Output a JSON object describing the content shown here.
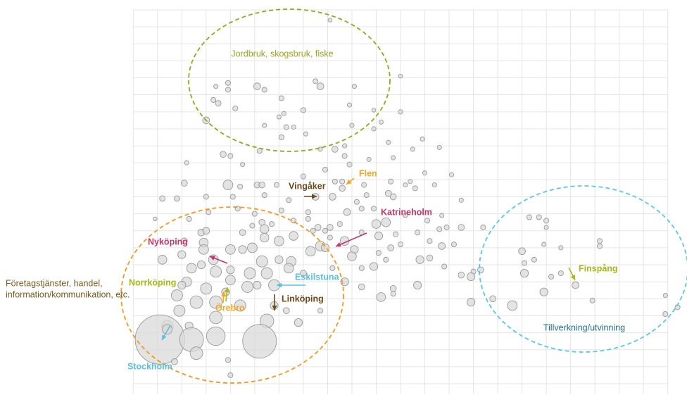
{
  "chart_data": {
    "type": "scatter",
    "xlim": [
      -0.5,
      22.5
    ],
    "ylim": [
      -0.6,
      22
    ],
    "xticks": [
      0,
      1,
      2,
      3,
      4,
      5,
      6,
      7,
      8,
      9,
      10,
      11,
      12,
      13,
      14,
      15,
      16,
      17,
      18,
      19,
      20,
      21,
      22
    ],
    "yticks": [
      0,
      1,
      2,
      3,
      4,
      5,
      6,
      7,
      8,
      9,
      10,
      11,
      12,
      13,
      14,
      15,
      16,
      17,
      18,
      19,
      20,
      21,
      22
    ],
    "grid": true,
    "series": [
      {
        "color": "#d9d9d9",
        "x": [
          8.1,
          11.0,
          7.5,
          7.7,
          9.1,
          5.1,
          5.4,
          3.4,
          3.9,
          3.9,
          3.3,
          3.5,
          6.1,
          4.2,
          6.2,
          6.0,
          7.0,
          8.9,
          9.9,
          11.0,
          5.4,
          6.3,
          6.6,
          7.1,
          6.1,
          9.9,
          3.0,
          9.0,
          10.2,
          10.5,
          8.3,
          8.7,
          7.7,
          8.7,
          11.9,
          12.6,
          11.5,
          3.7,
          5.2,
          4.0,
          9.7,
          10.7,
          2.2,
          4.5,
          8.9,
          7.9,
          12.0,
          13.1,
          3.9,
          2.1,
          4.4,
          5.1,
          5.3,
          5.9,
          7.0,
          8.3,
          8.6,
          8.6,
          8.2,
          9.5,
          10.6,
          11.2,
          11.4,
          11.6,
          12.4,
          1.2,
          1.8,
          3.0,
          4.1,
          5.4,
          6.4,
          7.5,
          9.2,
          9.6,
          10.5,
          10.7,
          13.5,
          0.9,
          2.3,
          3.1,
          4.3,
          5.0,
          6.1,
          7.2,
          7.2,
          8.8,
          9.4,
          9.9,
          10.4,
          11.2,
          12.1,
          12.7,
          4.9,
          5.3,
          5.7,
          6.6,
          7.6,
          8.1,
          8.5,
          10.0,
          11.7,
          12.6,
          12.9,
          13.5,
          14.4,
          16.3,
          16.7,
          17.0,
          17.0,
          2.8,
          3.0,
          2.1,
          2.9,
          4.5,
          5.4,
          5.4,
          6.6,
          7.4,
          7.9,
          8.1,
          8.7,
          9.4,
          10.1,
          10.8,
          12.2,
          12.7,
          13.2,
          11.0,
          10.6,
          10.1,
          9.1,
          19.2,
          19.2,
          17.6,
          16.0,
          16.9,
          1.2,
          2.0,
          3.3,
          4.0,
          4.5,
          4.9,
          6.0,
          5.3,
          6.0,
          6.5,
          7.3,
          7.7,
          7.9,
          2.4,
          2.8,
          2.9,
          3.4,
          4.0,
          4.8,
          5.5,
          6.4,
          8.2,
          9.0,
          9.4,
          9.9,
          10.4,
          11.8,
          12.2,
          12.8,
          13.5,
          14.0,
          2.2,
          3.0,
          4.0,
          4.7,
          5.1,
          5.8,
          7.0,
          8.7,
          9.4,
          10.7,
          11.7,
          13.9,
          14.3,
          16.1,
          17.2,
          17.6,
          18.2,
          16.1,
          16.5,
          1.8,
          2.0,
          2.6,
          3.4,
          3.8,
          1.9,
          3.4,
          4.4,
          5.5,
          5.8,
          6.3,
          7.7,
          10.2,
          10.7,
          13.9,
          14.8,
          15.6,
          16.9,
          18.9,
          21.9,
          22.4,
          21.9,
          1.4,
          2.3,
          6.8,
          1.1,
          1.4,
          2.4,
          3.4,
          5.2,
          2.6,
          1.7,
          3.9,
          4.0
        ],
        "values": [
          21.4,
          18.1,
          17.8,
          17.5,
          17.5,
          17.5,
          17.3,
          17.5,
          17.7,
          17.3,
          16.7,
          16.5,
          16.8,
          16.2,
          15.9,
          15.7,
          16.1,
          16.4,
          16.1,
          16.0,
          15.2,
          15.1,
          15.1,
          14.7,
          14.5,
          15.0,
          15.5,
          15.2,
          15.4,
          14.2,
          13.8,
          14.0,
          13.8,
          13.4,
          14.4,
          13.9,
          13.8,
          13.5,
          13.7,
          13.4,
          13.2,
          13.3,
          13.0,
          12.9,
          12.9,
          12.6,
          12.4,
          12.3,
          11.7,
          11.8,
          11.6,
          11.7,
          11.7,
          11.7,
          12.2,
          11.9,
          11.9,
          11.5,
          11.0,
          11.7,
          11.9,
          11.7,
          11.9,
          11.5,
          11.7,
          10.9,
          10.9,
          11.0,
          11.0,
          11.1,
          10.8,
          11.0,
          10.7,
          11.1,
          11.2,
          11.0,
          10.8,
          9.7,
          9.7,
          10.1,
          10.3,
          10.0,
          10.2,
          10.1,
          9.7,
          10.1,
          10.3,
          10.3,
          9.5,
          9.9,
          9.6,
          9.9,
          9.3,
          9.5,
          9.4,
          9.6,
          9.2,
          9.2,
          9.4,
          9.4,
          8.9,
          9.1,
          9.2,
          9.2,
          9.2,
          9.8,
          9.8,
          9.6,
          9.2,
          8.9,
          9.0,
          8.4,
          8.3,
          8.9,
          9.1,
          8.6,
          8.7,
          9.0,
          9.0,
          8.6,
          8.4,
          8.9,
          8.7,
          8.8,
          8.4,
          8.1,
          8.2,
          8.2,
          8.0,
          7.7,
          7.9,
          8.4,
          8.1,
          8.0,
          7.8,
          8.2,
          7.3,
          7.6,
          7.3,
          7.9,
          7.9,
          8.0,
          8.4,
          7.2,
          7.3,
          7.2,
          7.8,
          8.1,
          8.0,
          6.8,
          7.0,
          7.9,
          6.6,
          6.7,
          6.5,
          6.5,
          6.8,
          6.8,
          7.5,
          6.8,
          6.9,
          7.3,
          7.3,
          7.4,
          6.9,
          6.4,
          6.6,
          6.0,
          5.6,
          6.1,
          5.7,
          5.8,
          5.8,
          6.5,
          6.0,
          5.7,
          5.6,
          5.8,
          6.3,
          6.7,
          6.5,
          6.3,
          6.5,
          5.8,
          7.1,
          7.3,
          5.2,
          5.8,
          4.8,
          4.8,
          5.4,
          4.3,
          3.9,
          4.6,
          3.7,
          4.6,
          4.3,
          4.3,
          5.1,
          5.3,
          4.8,
          5.0,
          4.6,
          5.4,
          4.9,
          5.2,
          4.5,
          4.1,
          3.4,
          3.4,
          3.6,
          2.6,
          3.2,
          2.6,
          2.8,
          2.5,
          1.8,
          1.3,
          1.4,
          0.5
        ],
        "sizes": [
          0.5,
          0.5,
          0.8,
          1.5,
          0.6,
          1.5,
          0.8,
          0.6,
          0.8,
          0.8,
          0.8,
          1,
          0.8,
          0.8,
          0.6,
          0.6,
          0.8,
          0.6,
          0.5,
          0.6,
          0.6,
          0.8,
          0.6,
          0.6,
          0.8,
          0.6,
          1.5,
          0.6,
          0.6,
          0.6,
          1.2,
          0.6,
          0.6,
          0.8,
          0.6,
          0.6,
          0.6,
          1.2,
          0.8,
          0.8,
          0.6,
          0.6,
          0.6,
          0.6,
          0.8,
          0.8,
          0.6,
          0.6,
          3,
          1.2,
          0.8,
          1.2,
          1.2,
          0.8,
          0.8,
          0.8,
          0.8,
          1.2,
          1.5,
          0.8,
          0.8,
          0.6,
          0.6,
          0.8,
          0.6,
          1,
          1,
          0.8,
          0.8,
          0.8,
          0.8,
          1.5,
          0.8,
          0.8,
          1.2,
          1.2,
          0.6,
          0.5,
          0.8,
          0.8,
          0.8,
          0.8,
          0.8,
          0.8,
          0.8,
          1.5,
          0.8,
          0.8,
          2.5,
          0.6,
          0.8,
          0.6,
          0.8,
          1.2,
          0.8,
          0.8,
          1.2,
          1.2,
          0.8,
          2.5,
          0.8,
          0.8,
          0.8,
          1.2,
          0.8,
          0.8,
          0.8,
          0.8,
          0.6,
          1.5,
          1.5,
          1.2,
          2.5,
          1.2,
          2.5,
          2.5,
          2.5,
          0.8,
          0.8,
          0.8,
          2.5,
          0.8,
          2,
          0.8,
          0.8,
          1.5,
          0.8,
          0.8,
          1.2,
          0.8,
          2,
          0.8,
          0.8,
          0.6,
          1.5,
          0.6,
          2.5,
          2,
          3,
          3,
          2,
          3,
          3,
          4,
          2,
          3,
          3,
          3,
          2,
          3,
          2,
          3,
          4,
          2,
          4,
          4,
          3,
          0.8,
          2.5,
          0.8,
          2,
          0.8,
          2,
          1.2,
          0.8,
          1.2,
          0.8,
          3,
          4,
          3,
          4,
          2,
          4,
          1.2,
          2,
          1.2,
          1.2,
          2,
          2,
          1.2,
          2,
          0.8,
          0.8,
          1.5,
          0.8,
          0.8,
          4,
          2,
          5,
          5,
          2,
          4,
          5,
          4,
          6,
          2,
          1.2,
          0.8,
          2.5,
          0.8,
          2,
          1.2,
          3,
          2,
          0.8,
          0.6,
          0.8,
          0.8,
          4,
          2,
          2,
          77,
          3,
          18,
          11,
          36,
          5,
          1.2,
          0.8,
          0.8
        ]
      }
    ],
    "groups": [
      {
        "lines": [
          "Jordbruk, skogsbruk, fiske"
        ],
        "color": "#9aa61e"
      },
      {
        "lines": [
          "Företagstjänster, handel,",
          "information/kommunikation, etc."
        ],
        "color": "#f39c1a",
        "text_color": "#7a5a1e"
      },
      {
        "lines": [
          "Tillverkning/utvinning"
        ],
        "color": "#5bc8e3",
        "text_color": "#1e6f8a"
      }
    ],
    "annotations": [
      {
        "text": "Flen",
        "color": "#f5a623"
      },
      {
        "text": "Vingåker",
        "color": "#6b4a1c"
      },
      {
        "text": "Katrineholm",
        "color": "#c2366a"
      },
      {
        "text": "Nyköping",
        "color": "#c2366a"
      },
      {
        "text": "Norrköping",
        "color": "#a9b81b"
      },
      {
        "text": "Eskilstuna",
        "color": "#5bc0de"
      },
      {
        "text": "Linköping",
        "color": "#6b4a1c"
      },
      {
        "text": "Örebro",
        "color": "#f5a623"
      },
      {
        "text": "Stockholm",
        "color": "#5bc0de"
      },
      {
        "text": "Finspång",
        "color": "#a9b81b"
      }
    ]
  }
}
